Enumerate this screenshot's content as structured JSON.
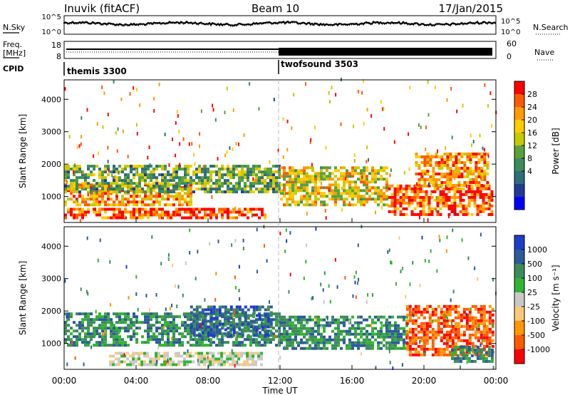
{
  "header": {
    "station": "Inuvik (fitACF)",
    "beam": "Beam 10",
    "date": "17/Jan/2015"
  },
  "noise_panel": {
    "left_label": "N.Sky",
    "right_label": "N.Search",
    "left_ticks": [
      "10^5",
      "10^0"
    ],
    "right_ticks": [
      "10^5",
      "10^0"
    ]
  },
  "freq_panel": {
    "left_label_1": "Freq.",
    "left_label_2": "[MHz]",
    "right_label": "Nave",
    "left_ticks": [
      "18",
      "8"
    ],
    "right_ticks": [
      "60",
      "0"
    ]
  },
  "cpid": {
    "label": "CPID",
    "programs": [
      {
        "name": "themis 3300",
        "start_hour": 0,
        "end_hour": 12
      },
      {
        "name": "twofsound 3503",
        "start_hour": 12,
        "end_hour": 24
      }
    ]
  },
  "x_axis": {
    "title": "Time UT",
    "range_hours": [
      0,
      24
    ],
    "ticks": [
      "00:00",
      "04:00",
      "08:00",
      "12:00",
      "16:00",
      "20:00",
      "00:00"
    ]
  },
  "power_colorbar": {
    "title": "Power [dB]",
    "ticks": [
      "28",
      "24",
      "20",
      "16",
      "12",
      "8",
      "4"
    ],
    "colors": [
      "#ff0000",
      "#ff5a00",
      "#ff9a00",
      "#ffcc00",
      "#c8c800",
      "#5aa03c",
      "#3c8c5a",
      "#2d6e78",
      "#1e3c96",
      "#0000ff"
    ]
  },
  "velocity_colorbar": {
    "title": "Velocity [m s⁻¹]",
    "ticks": [
      "1000",
      "500",
      "100",
      "25",
      "-25",
      "-100",
      "-500",
      "-1000"
    ],
    "colors": [
      "#1e3cc8",
      "#2d5a9a",
      "#3c8c5a",
      "#32b432",
      "#c8c8c8",
      "#ffc878",
      "#ff9600",
      "#ff5a00",
      "#ff0000"
    ]
  },
  "chart_data": [
    {
      "type": "heatmap",
      "title": "Power",
      "ylabel": "Slant Range [km]",
      "xlabel": "",
      "y_ticks": [
        "4000",
        "3000",
        "2000",
        "1000"
      ],
      "ylim": [
        200,
        4600
      ],
      "xlim_hours": [
        0,
        24
      ],
      "colorbar": "Power [dB]",
      "echo_regions": [
        {
          "t0": 0.0,
          "t1": 11.2,
          "r0": 300,
          "r1": 600,
          "value_db": 28
        },
        {
          "t0": 0.0,
          "t1": 7.0,
          "r0": 700,
          "r1": 1400,
          "value_db": 24
        },
        {
          "t0": 0.0,
          "t1": 12.0,
          "r0": 1100,
          "r1": 1900,
          "value_db": 14
        },
        {
          "t0": 12.0,
          "t1": 18.0,
          "r0": 700,
          "r1": 1900,
          "value_db": 20
        },
        {
          "t0": 18.0,
          "t1": 24.0,
          "r0": 400,
          "r1": 1300,
          "value_db": 28
        },
        {
          "t0": 19.5,
          "t1": 23.5,
          "r0": 1300,
          "r1": 2300,
          "value_db": 24
        }
      ]
    },
    {
      "type": "heatmap",
      "title": "Velocity",
      "ylabel": "Slant Range [km]",
      "xlabel": "Time UT",
      "y_ticks": [
        "4000",
        "3000",
        "2000",
        "1000"
      ],
      "ylim": [
        200,
        4600
      ],
      "xlim_hours": [
        0,
        24
      ],
      "colorbar": "Velocity [m s⁻¹]",
      "echo_regions": [
        {
          "t0": 0.0,
          "t1": 12.0,
          "r0": 900,
          "r1": 1900,
          "value_ms": 100
        },
        {
          "t0": 2.5,
          "t1": 11.0,
          "r0": 300,
          "r1": 700,
          "value_ms": 0
        },
        {
          "t0": 7.0,
          "t1": 11.5,
          "r0": 1200,
          "r1": 2100,
          "value_ms": 500
        },
        {
          "t0": 12.0,
          "t1": 19.0,
          "r0": 800,
          "r1": 1800,
          "value_ms": 100
        },
        {
          "t0": 19.0,
          "t1": 24.0,
          "r0": 600,
          "r1": 2100,
          "value_ms": -500
        },
        {
          "t0": 21.5,
          "t1": 24.0,
          "r0": 400,
          "r1": 900,
          "value_ms": 100
        }
      ]
    }
  ]
}
